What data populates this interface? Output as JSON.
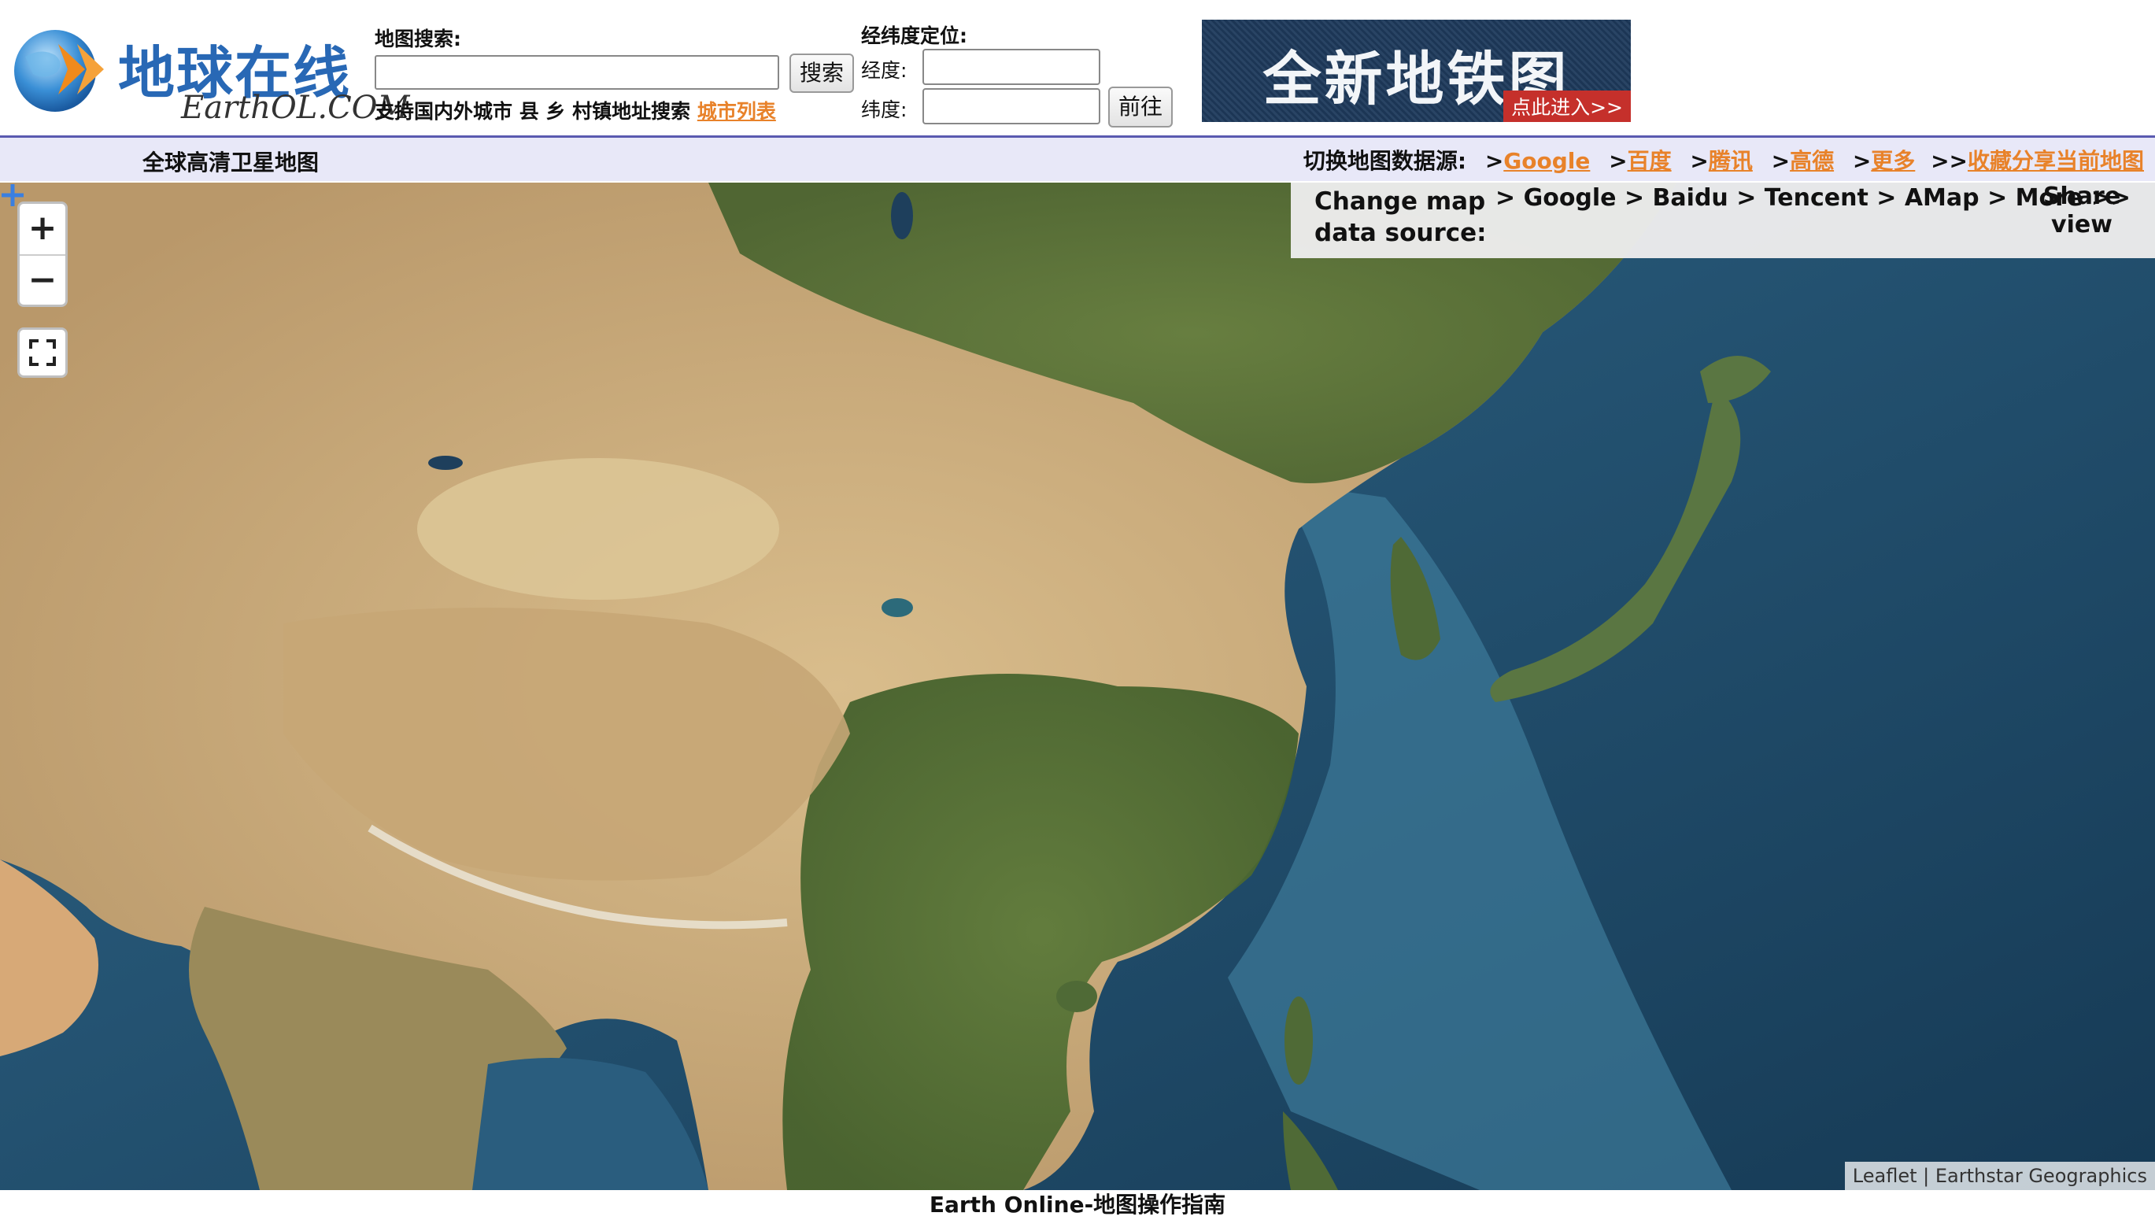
{
  "header": {
    "logo": {
      "name_cn": "地球在线",
      "name_en": "EarthOL.COM"
    },
    "search": {
      "label": "地图搜索:",
      "input_value": "",
      "button_label": "搜索",
      "hint": "支持国内外城市 县 乡 村镇地址搜索 ",
      "city_list_link": "城市列表"
    },
    "coords": {
      "title": "经纬度定位:",
      "lon_label": "经度:",
      "lat_label": "纬度:",
      "lon_value": "",
      "lat_value": "",
      "go_label": "前往"
    },
    "ad": {
      "title": "全新地铁图",
      "cta": "点此进入>>"
    }
  },
  "nav": {
    "title": "全球高清卫星地图",
    "switch_label": "切换地图数据源:",
    "sources": [
      "Google",
      "百度",
      "腾讯",
      "高德",
      "更多"
    ],
    "share_link": "收藏分享当前地图"
  },
  "map": {
    "zoom_in": "+",
    "zoom_out": "−",
    "overlay": {
      "label": "Change map data source:",
      "links": "> Google > Baidu > Tencent > AMap > More >>",
      "share": "Share view"
    },
    "attribution": "Leaflet | Earthstar Geographics"
  },
  "footer": {
    "guide": "Earth Online-地图操作指南"
  },
  "colors": {
    "link": "#e8822a",
    "brand": "#2868b5",
    "nav_bg": "#e8e8f8",
    "ocean": "#25506e"
  }
}
